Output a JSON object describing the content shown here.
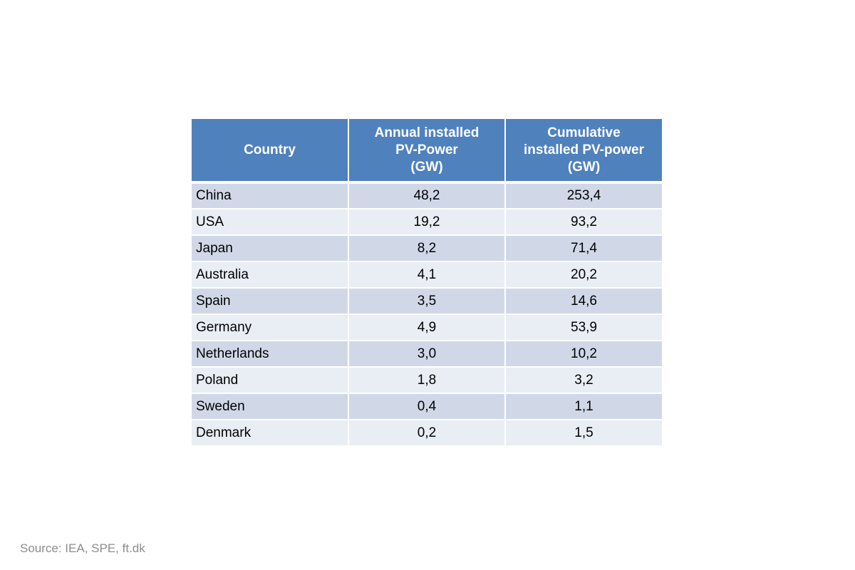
{
  "table": {
    "headers": {
      "country": "Country",
      "annual": [
        "Annual installed",
        "PV-Power",
        "(GW)"
      ],
      "cumulative": [
        "Cumulative",
        "installed PV-power",
        "(GW)"
      ]
    },
    "rows": [
      {
        "country": "China",
        "annual": "48,2",
        "cumulative": "253,4"
      },
      {
        "country": "USA",
        "annual": "19,2",
        "cumulative": "93,2"
      },
      {
        "country": "Japan",
        "annual": "8,2",
        "cumulative": "71,4"
      },
      {
        "country": "Australia",
        "annual": "4,1",
        "cumulative": "20,2"
      },
      {
        "country": "Spain",
        "annual": "3,5",
        "cumulative": "14,6"
      },
      {
        "country": "Germany",
        "annual": "4,9",
        "cumulative": "53,9"
      },
      {
        "country": "Netherlands",
        "annual": "3,0",
        "cumulative": "10,2"
      },
      {
        "country": "Poland",
        "annual": "1,8",
        "cumulative": "3,2"
      },
      {
        "country": "Sweden",
        "annual": "0,4",
        "cumulative": "1,1"
      },
      {
        "country": "Denmark",
        "annual": "0,2",
        "cumulative": "1,5"
      }
    ]
  },
  "source": "Source: IEA, SPE, ft.dk",
  "colors": {
    "header_bg": "#4f81bd",
    "row_dark": "#d0d8e8",
    "row_light": "#e9edf4",
    "source_text": "#8c8c8c"
  }
}
